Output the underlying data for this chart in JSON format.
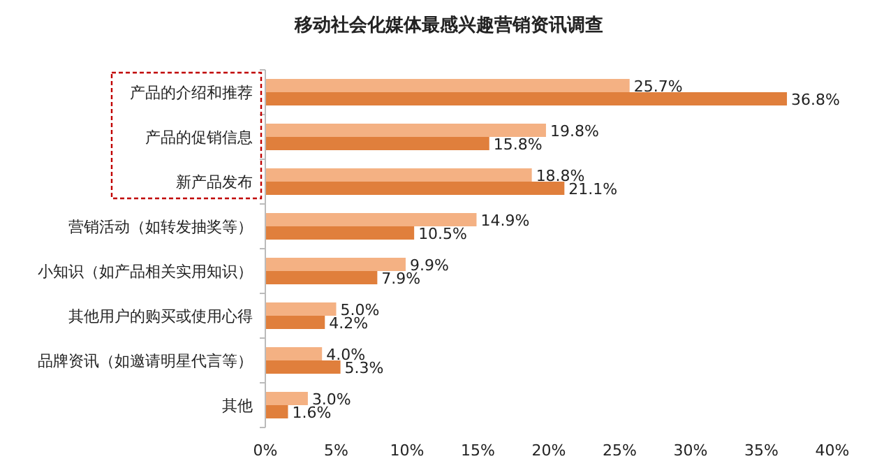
{
  "chart_data": {
    "type": "bar",
    "orientation": "horizontal",
    "title": "移动社会化媒体最感兴趣营销资讯调查",
    "categories": [
      "产品的介绍和推荐",
      "产品的促销信息",
      "新产品发布",
      "营销活动（如转发抽奖等）",
      "小知识（如产品相关实用知识）",
      "其他用户的购买或使用心得",
      "品牌资讯（如邀请明星代言等）",
      "其他"
    ],
    "series": [
      {
        "color": "#f4b183",
        "values": [
          25.7,
          19.8,
          18.8,
          14.9,
          9.9,
          5.0,
          4.0,
          3.0
        ],
        "value_labels": [
          "25.7%",
          "19.8%",
          "18.8%",
          "14.9%",
          "9.9%",
          "5.0%",
          "4.0%",
          "3.0%"
        ]
      },
      {
        "color": "#e07f3c",
        "values": [
          36.8,
          15.8,
          21.1,
          10.5,
          7.9,
          4.2,
          5.3,
          1.6
        ],
        "value_labels": [
          "36.8%",
          "15.8%",
          "21.1%",
          "10.5%",
          "7.9%",
          "4.2%",
          "5.3%",
          "1.6%"
        ]
      }
    ],
    "xlim": [
      0,
      40
    ],
    "xticks": [
      {
        "value": 0,
        "label": "0%"
      },
      {
        "value": 5,
        "label": "5%"
      },
      {
        "value": 10,
        "label": "10%"
      },
      {
        "value": 15,
        "label": "15%"
      },
      {
        "value": 20,
        "label": "20%"
      },
      {
        "value": 25,
        "label": "25%"
      },
      {
        "value": 30,
        "label": "30%"
      },
      {
        "value": 35,
        "label": "35%"
      },
      {
        "value": 40,
        "label": "40%"
      }
    ],
    "grid": false
  }
}
